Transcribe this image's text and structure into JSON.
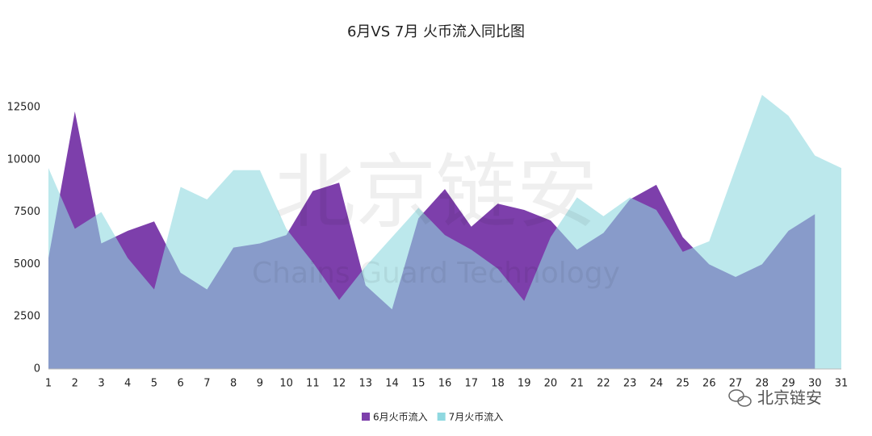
{
  "chart_data": {
    "type": "area",
    "title": "6月VS 7月 火币流入同比图",
    "categories": [
      "1",
      "2",
      "3",
      "4",
      "5",
      "6",
      "7",
      "8",
      "9",
      "10",
      "11",
      "12",
      "13",
      "14",
      "15",
      "16",
      "17",
      "18",
      "19",
      "20",
      "21",
      "22",
      "23",
      "24",
      "25",
      "26",
      "27",
      "28",
      "29",
      "30",
      "31"
    ],
    "series": [
      {
        "name": "6月火币流入",
        "color": "#7d3fab",
        "values": [
          5300,
          12300,
          6000,
          6600,
          7050,
          4600,
          3800,
          5800,
          6000,
          6400,
          8500,
          8900,
          4000,
          2850,
          7200,
          8600,
          6800,
          7900,
          7600,
          7100,
          5700,
          6500,
          8100,
          8800,
          6300,
          5000,
          4400,
          5000,
          6600,
          7400,
          null
        ]
      },
      {
        "name": "7月火币流入",
        "color": "#8fd8e0",
        "values": [
          9600,
          6700,
          7500,
          5300,
          3800,
          8700,
          8100,
          9500,
          9500,
          6700,
          5100,
          3300,
          4900,
          6300,
          7700,
          6400,
          5700,
          4800,
          3250,
          6300,
          8200,
          7300,
          8200,
          7600,
          5600,
          6100,
          9600,
          13100,
          12100,
          10200,
          9600
        ]
      }
    ],
    "ylim": [
      0,
      15000
    ],
    "yticks": [
      0,
      2500,
      5000,
      7500,
      10000,
      12500
    ],
    "legend": "bottom",
    "watermark": [
      "北京链安",
      "Chains Guard Technology"
    ],
    "brand": "北京链安"
  }
}
